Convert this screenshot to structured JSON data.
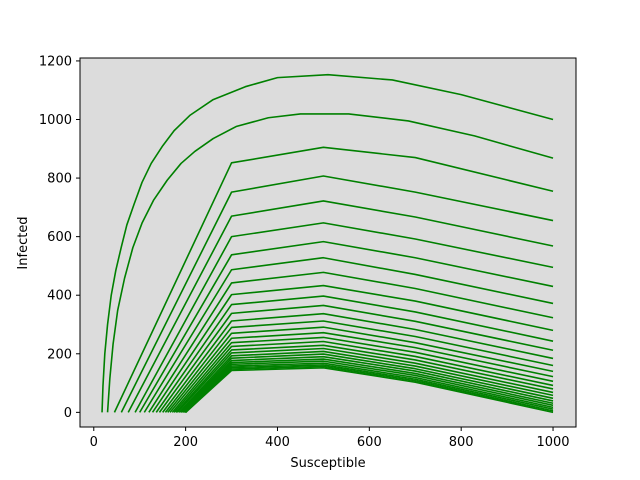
{
  "chart_data": {
    "type": "line",
    "title": "",
    "xlabel": "Susceptible",
    "ylabel": "Infected",
    "xlim": [
      -30,
      1050
    ],
    "ylim": [
      -50,
      1210
    ],
    "x_ticks": [
      0,
      200,
      400,
      600,
      800,
      1000
    ],
    "y_ticks": [
      0,
      200,
      400,
      600,
      800,
      1000,
      1200
    ],
    "x_tick_labels": [
      "0",
      "200",
      "400",
      "600",
      "800",
      "1000"
    ],
    "y_tick_labels": [
      "0",
      "200",
      "400",
      "600",
      "800",
      "1000",
      "1200"
    ],
    "grid": false,
    "legend": "none",
    "plot_background": "#dcdcdc",
    "series_color": "#008000",
    "series": [
      {
        "x": [
          1000,
          800,
          650,
          510,
          400,
          330,
          260,
          210,
          175,
          150,
          125,
          105,
          88,
          72,
          60,
          48,
          38,
          30,
          24,
          20,
          18
        ],
        "y": [
          1000,
          1085,
          1135,
          1153,
          1143,
          1112,
          1068,
          1015,
          962,
          910,
          850,
          785,
          712,
          640,
          565,
          485,
          400,
          300,
          200,
          90,
          0
        ]
      },
      {
        "x": [
          1000,
          829,
          685,
          555,
          450,
          380,
          310,
          260,
          220,
          190,
          160,
          130,
          105,
          85,
          67,
          52,
          42,
          35,
          30
        ],
        "y": [
          868,
          944,
          995,
          1019,
          1019,
          1006,
          976,
          935,
          891,
          850,
          793,
          724,
          646,
          562,
          458,
          348,
          233,
          116,
          0
        ]
      },
      {
        "x": [
          1000,
          700,
          500,
          300,
          45
        ],
        "y": [
          755,
          870,
          905,
          852,
          0
        ]
      },
      {
        "x": [
          1000,
          700,
          500,
          300,
          60
        ],
        "y": [
          655,
          752,
          807,
          752,
          0
        ]
      },
      {
        "x": [
          1000,
          700,
          500,
          300,
          75
        ],
        "y": [
          568,
          667,
          722,
          670,
          0
        ]
      },
      {
        "x": [
          1000,
          700,
          500,
          300,
          90
        ],
        "y": [
          495,
          592,
          647,
          600,
          0
        ]
      },
      {
        "x": [
          1000,
          700,
          500,
          300,
          100
        ],
        "y": [
          430,
          528,
          583,
          538,
          0
        ]
      },
      {
        "x": [
          1000,
          700,
          500,
          300,
          110
        ],
        "y": [
          372,
          471,
          528,
          487,
          0
        ]
      },
      {
        "x": [
          1000,
          700,
          500,
          300,
          120
        ],
        "y": [
          323,
          423,
          478,
          442,
          0
        ]
      },
      {
        "x": [
          1000,
          700,
          500,
          300,
          128
        ],
        "y": [
          280,
          380,
          433,
          402,
          0
        ]
      },
      {
        "x": [
          1000,
          700,
          500,
          300,
          136
        ],
        "y": [
          243,
          343,
          397,
          368,
          0
        ]
      },
      {
        "x": [
          1000,
          700,
          500,
          300,
          143
        ],
        "y": [
          212,
          311,
          365,
          338,
          0
        ]
      },
      {
        "x": [
          1000,
          700,
          500,
          300,
          150
        ],
        "y": [
          184,
          283,
          337,
          312,
          0
        ]
      },
      {
        "x": [
          1000,
          700,
          500,
          300,
          156
        ],
        "y": [
          160,
          259,
          312,
          290,
          0
        ]
      },
      {
        "x": [
          1000,
          700,
          500,
          300,
          161
        ],
        "y": [
          140,
          238,
          291,
          270,
          0
        ]
      },
      {
        "x": [
          1000,
          700,
          500,
          300,
          166
        ],
        "y": [
          122,
          221,
          272,
          253,
          0
        ]
      },
      {
        "x": [
          1000,
          700,
          500,
          300,
          171
        ],
        "y": [
          106,
          205,
          256,
          238,
          0
        ]
      },
      {
        "x": [
          1000,
          700,
          500,
          300,
          175
        ],
        "y": [
          92,
          191,
          242,
          225,
          0
        ]
      },
      {
        "x": [
          1000,
          700,
          500,
          300,
          179
        ],
        "y": [
          80,
          179,
          229,
          213,
          0
        ]
      },
      {
        "x": [
          1000,
          700,
          500,
          300,
          182
        ],
        "y": [
          68,
          168,
          218,
          203,
          0
        ]
      },
      {
        "x": [
          1000,
          700,
          500,
          300,
          186
        ],
        "y": [
          58,
          158,
          208,
          193,
          0
        ]
      },
      {
        "x": [
          1000,
          700,
          500,
          300,
          189
        ],
        "y": [
          48,
          149,
          199,
          185,
          0
        ]
      },
      {
        "x": [
          1000,
          700,
          500,
          300,
          191
        ],
        "y": [
          39,
          141,
          190,
          177,
          0
        ]
      },
      {
        "x": [
          1000,
          700,
          500,
          300,
          194
        ],
        "y": [
          31,
          133,
          182,
          170,
          0
        ]
      },
      {
        "x": [
          1000,
          700,
          500,
          300,
          196
        ],
        "y": [
          24,
          126,
          175,
          164,
          0
        ]
      },
      {
        "x": [
          1000,
          700,
          500,
          300,
          198
        ],
        "y": [
          17,
          119,
          168,
          158,
          0
        ]
      },
      {
        "x": [
          1000,
          700,
          500,
          300,
          199
        ],
        "y": [
          11,
          113,
          162,
          153,
          0
        ]
      },
      {
        "x": [
          1000,
          700,
          500,
          300,
          200
        ],
        "y": [
          5,
          108,
          157,
          148,
          0
        ]
      },
      {
        "x": [
          1000,
          700,
          500,
          300,
          200
        ],
        "y": [
          0,
          103,
          152,
          143,
          0
        ]
      }
    ]
  }
}
